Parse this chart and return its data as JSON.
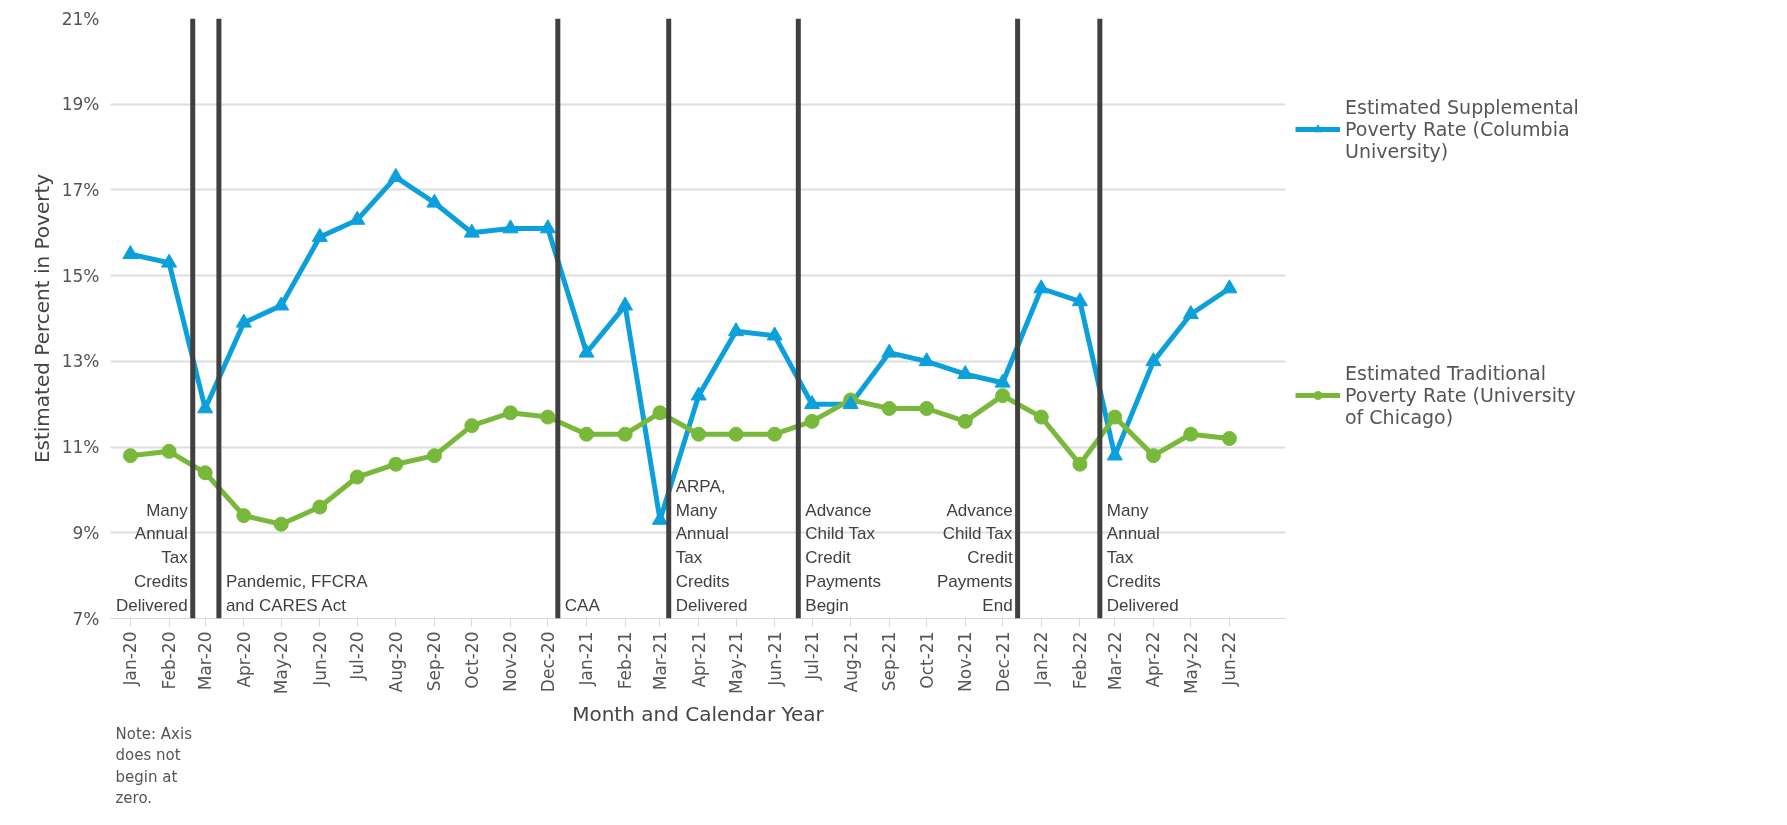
{
  "chart_data": {
    "type": "line",
    "xlabel": "Month and Calendar Year",
    "ylabel": "Estimated Percent in Poverty",
    "x": [
      "2020-01",
      "2020-02",
      "2020-03",
      "2020-04",
      "2020-05",
      "2020-06",
      "2020-07",
      "2020-08",
      "2020-09",
      "2020-10",
      "2020-11",
      "2020-12",
      "2021-01",
      "2021-02",
      "2021-03",
      "2021-04",
      "2021-05",
      "2021-06",
      "2021-07",
      "2021-08",
      "2021-09",
      "2021-10",
      "2021-11",
      "2021-12",
      "2022-01",
      "2022-02",
      "2022-03",
      "2022-04",
      "2022-05",
      "2022-06"
    ],
    "series": [
      {
        "name": "Estimated Supplemental Poverty Rate (Columbia University)",
        "color": "#0ba0dc",
        "marker": "triangle",
        "values": [
          15.5,
          15.3,
          11.9,
          13.9,
          14.3,
          15.9,
          16.3,
          17.3,
          16.7,
          16.0,
          16.1,
          16.1,
          13.2,
          14.3,
          9.3,
          12.2,
          13.7,
          13.6,
          12.0,
          12.0,
          13.2,
          13.0,
          12.7,
          12.5,
          14.7,
          14.4,
          10.8,
          13.0,
          14.1,
          14.7
        ]
      },
      {
        "name": "Estimated Traditional Poverty Rate (University of Chicago)",
        "color": "#78b83a",
        "marker": "circle",
        "values": [
          10.8,
          10.9,
          10.4,
          9.4,
          9.2,
          9.6,
          10.3,
          10.6,
          10.8,
          11.5,
          11.8,
          11.7,
          11.3,
          11.3,
          11.8,
          11.3,
          11.3,
          11.3,
          11.6,
          12.1,
          11.9,
          11.9,
          11.6,
          12.2,
          11.7,
          10.6,
          11.7,
          10.8,
          11.3,
          11.2
        ]
      }
    ],
    "xlim": [
      "2019-12-16",
      "2022-07-16"
    ],
    "xticks": [
      {
        "value": "2020-01",
        "label": "Jan-20"
      },
      {
        "value": "2020-02",
        "label": "Feb-20"
      },
      {
        "value": "2020-03",
        "label": "Mar-20"
      },
      {
        "value": "2020-04",
        "label": "Apr-20"
      },
      {
        "value": "2020-05",
        "label": "May-20"
      },
      {
        "value": "2020-06",
        "label": "Jun-20"
      },
      {
        "value": "2020-07",
        "label": "Jul-20"
      },
      {
        "value": "2020-08",
        "label": "Aug-20"
      },
      {
        "value": "2020-09",
        "label": "Sep-20"
      },
      {
        "value": "2020-10",
        "label": "Oct-20"
      },
      {
        "value": "2020-11",
        "label": "Nov-20"
      },
      {
        "value": "2020-12",
        "label": "Dec-20"
      },
      {
        "value": "2021-01",
        "label": "Jan-21"
      },
      {
        "value": "2021-02",
        "label": "Feb-21"
      },
      {
        "value": "2021-03",
        "label": "Mar-21"
      },
      {
        "value": "2021-04",
        "label": "Apr-21"
      },
      {
        "value": "2021-05",
        "label": "May-21"
      },
      {
        "value": "2021-06",
        "label": "Jun-21"
      },
      {
        "value": "2021-07",
        "label": "Jul-21"
      },
      {
        "value": "2021-08",
        "label": "Aug-21"
      },
      {
        "value": "2021-09",
        "label": "Sep-21"
      },
      {
        "value": "2021-10",
        "label": "Oct-21"
      },
      {
        "value": "2021-11",
        "label": "Nov-21"
      },
      {
        "value": "2021-12",
        "label": "Dec-21"
      },
      {
        "value": "2022-01",
        "label": "Jan-22"
      },
      {
        "value": "2022-02",
        "label": "Feb-22"
      },
      {
        "value": "2022-03",
        "label": "Mar-22"
      },
      {
        "value": "2022-04",
        "label": "Apr-22"
      },
      {
        "value": "2022-05",
        "label": "May-22"
      },
      {
        "value": "2022-06",
        "label": "Jun-22"
      }
    ],
    "ylim": [
      7,
      21
    ],
    "yticks": [
      {
        "value": 7,
        "label": "7%"
      },
      {
        "value": 9,
        "label": "9%"
      },
      {
        "value": 11,
        "label": "11%"
      },
      {
        "value": 13,
        "label": "13%"
      },
      {
        "value": 15,
        "label": "15%"
      },
      {
        "value": 17,
        "label": "17%"
      },
      {
        "value": 19,
        "label": "19%"
      },
      {
        "value": 21,
        "label": "21%"
      }
    ],
    "ref_lines": [
      {
        "axis": "x",
        "value": "2020-02-20",
        "label": "Many Annual Tax Credits Delivered",
        "color": "#404040"
      },
      {
        "axis": "x",
        "value": "2020-03-12",
        "label": "Pandemic, FFCRA and CARES Act",
        "color": "#404040"
      },
      {
        "axis": "x",
        "value": "2020-12-09",
        "label": "CAA",
        "color": "#404040"
      },
      {
        "axis": "x",
        "value": "2021-03-08",
        "label": "ARPA, Many Annual Tax Credits Delivered",
        "color": "#404040"
      },
      {
        "axis": "x",
        "value": "2021-06-20",
        "label": "Advance Child Tax Credit Payments Begin",
        "color": "#404040"
      },
      {
        "axis": "x",
        "value": "2021-12-13",
        "label": "Advance Child Tax Credit Payments End",
        "color": "#404040"
      },
      {
        "axis": "x",
        "value": "2022-02-17",
        "label": "Many Annual Tax Credits Delivered",
        "color": "#404040"
      }
    ],
    "annotations": [
      "Note: Axis does not begin at zero."
    ],
    "grid": "y",
    "legend": "right",
    "line_style": "solid"
  }
}
